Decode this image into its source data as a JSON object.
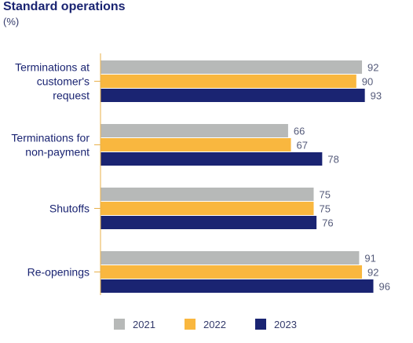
{
  "chart_data": {
    "type": "bar",
    "orientation": "horizontal",
    "title": "Standard operations",
    "subtitle": "(%)",
    "categories": [
      [
        "Terminations at",
        "customer's",
        "request"
      ],
      [
        "Terminations for",
        "non-payment"
      ],
      [
        "Shutoffs"
      ],
      [
        "Re-openings"
      ]
    ],
    "series": [
      {
        "name": "2021",
        "color": "#b7b9b8",
        "values": [
          92,
          66,
          75,
          91
        ]
      },
      {
        "name": "2022",
        "color": "#f9b73f",
        "values": [
          90,
          67,
          75,
          92
        ]
      },
      {
        "name": "2023",
        "color": "#1a2472",
        "values": [
          93,
          78,
          76,
          96
        ]
      }
    ],
    "xlim": [
      0,
      100
    ],
    "grid": false,
    "legend_position": "bottom",
    "axis_color": "#e8b04a",
    "label_color": "#1a2472",
    "value_label_color": "#555b7a"
  }
}
